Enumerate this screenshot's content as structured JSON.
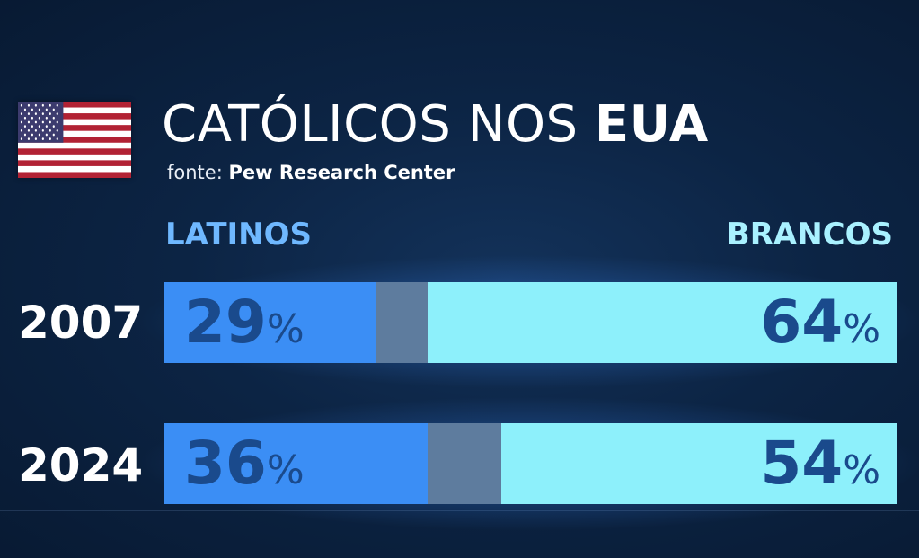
{
  "title": {
    "regular": "CATÓLICOS NOS",
    "bold": "EUA"
  },
  "source": {
    "prefix": "fonte:",
    "name": "Pew Research Center"
  },
  "colors": {
    "latinos": "#3b8ef5",
    "other": "#5e7c9e",
    "brancos": "#8df0fb",
    "label": "#1a4a8c"
  },
  "chart_data": {
    "type": "bar",
    "orientation": "horizontal-stacked",
    "categories": [
      "2007",
      "2024"
    ],
    "series": [
      {
        "name": "LATINOS",
        "values": [
          29,
          36
        ]
      },
      {
        "name": "BRANCOS",
        "values": [
          64,
          54
        ]
      }
    ],
    "value_suffix": "%",
    "xlim": [
      0,
      100
    ]
  }
}
